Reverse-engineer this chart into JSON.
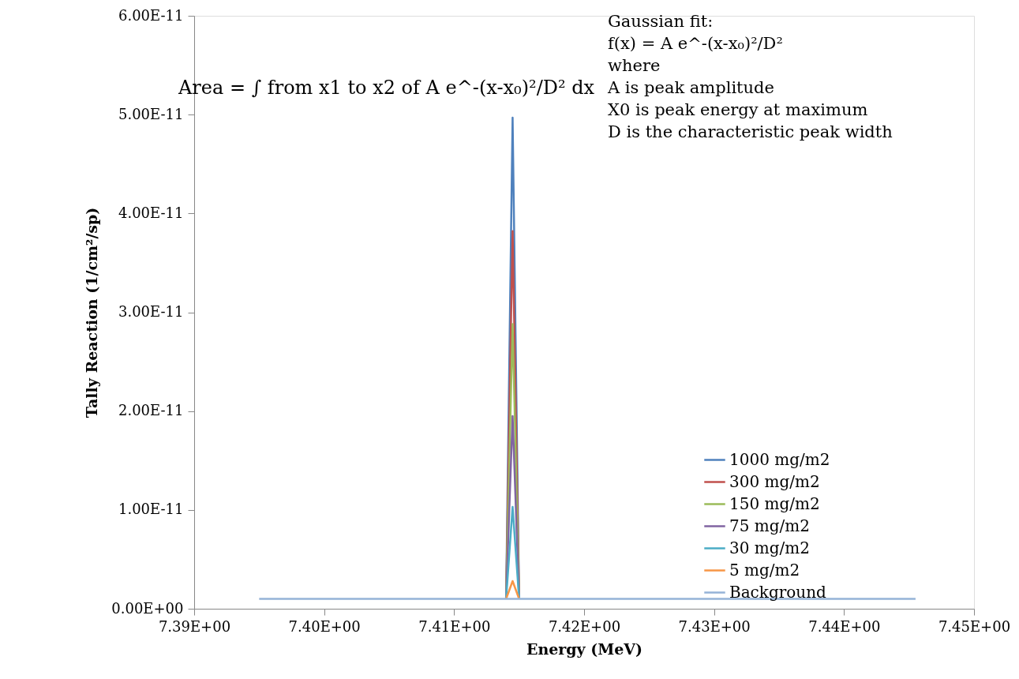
{
  "chart_data": {
    "type": "line",
    "xlabel": "Energy (MeV)",
    "ylabel": "Tally Reaction (1/cm²/sp)",
    "x": [
      7.395,
      7.4,
      7.405,
      7.41,
      7.414,
      7.4145,
      7.415,
      7.42,
      7.425,
      7.43,
      7.435,
      7.44,
      7.4455
    ],
    "series": [
      {
        "name": "1000 mg/m2",
        "color": "#4f81bd",
        "values": [
          null,
          null,
          null,
          null,
          1e-12,
          4.97e-11,
          1e-12,
          null,
          null,
          null,
          null,
          null,
          null
        ]
      },
      {
        "name": "300 mg/m2",
        "color": "#c0504d",
        "values": [
          null,
          null,
          null,
          null,
          1e-12,
          3.82e-11,
          1e-12,
          null,
          null,
          null,
          null,
          null,
          null
        ]
      },
      {
        "name": "150 mg/m2",
        "color": "#9bbb59",
        "values": [
          null,
          null,
          null,
          null,
          1e-12,
          2.88e-11,
          1e-12,
          null,
          null,
          null,
          null,
          null,
          null
        ]
      },
      {
        "name": "75 mg/m2",
        "color": "#8064a2",
        "values": [
          null,
          null,
          null,
          null,
          1e-12,
          1.95e-11,
          1e-12,
          null,
          null,
          null,
          null,
          null,
          null
        ]
      },
      {
        "name": "30 mg/m2",
        "color": "#4bacc6",
        "values": [
          null,
          null,
          null,
          null,
          1e-12,
          1.03e-11,
          1e-12,
          null,
          null,
          null,
          null,
          null,
          null
        ]
      },
      {
        "name": "5 mg/m2",
        "color": "#f79646",
        "values": [
          null,
          null,
          null,
          null,
          1e-12,
          2.8e-12,
          1e-12,
          null,
          null,
          null,
          null,
          null,
          null
        ]
      },
      {
        "name": "Background",
        "color": "#95b3d7",
        "values": [
          1e-12,
          1e-12,
          1e-12,
          1e-12,
          1e-12,
          1e-12,
          1e-12,
          1e-12,
          1e-12,
          1e-12,
          1e-12,
          1e-12,
          1e-12
        ]
      }
    ],
    "xlim": [
      7.39,
      7.45
    ],
    "xticks": [
      {
        "value": 7.39,
        "label": "7.39E+00"
      },
      {
        "value": 7.4,
        "label": "7.40E+00"
      },
      {
        "value": 7.41,
        "label": "7.41E+00"
      },
      {
        "value": 7.42,
        "label": "7.42E+00"
      },
      {
        "value": 7.43,
        "label": "7.43E+00"
      },
      {
        "value": 7.44,
        "label": "7.44E+00"
      },
      {
        "value": 7.45,
        "label": "7.45E+00"
      }
    ],
    "ylim": [
      0,
      6e-11
    ],
    "yticks": [
      {
        "value": 0,
        "label": "0.00E+00"
      },
      {
        "value": 1e-11,
        "label": "1.00E-11"
      },
      {
        "value": 2e-11,
        "label": "2.00E-11"
      },
      {
        "value": 3e-11,
        "label": "3.00E-11"
      },
      {
        "value": 4e-11,
        "label": "4.00E-11"
      },
      {
        "value": 5e-11,
        "label": "5.00E-11"
      },
      {
        "value": 6e-11,
        "label": "6.00E-11"
      }
    ],
    "annotations": [
      "Area = ∫ from x1 to x2 of A e^-(x-x₀)²/D² dx",
      "Gaussian fit:",
      "f(x) = A e^-(x-x₀)²/D²",
      "where",
      "A is peak amplitude",
      "X0 is peak energy at maximum",
      "D is the characteristic peak width"
    ],
    "legend": "right",
    "grid": false,
    "marker": "none",
    "line_style": "solid"
  }
}
